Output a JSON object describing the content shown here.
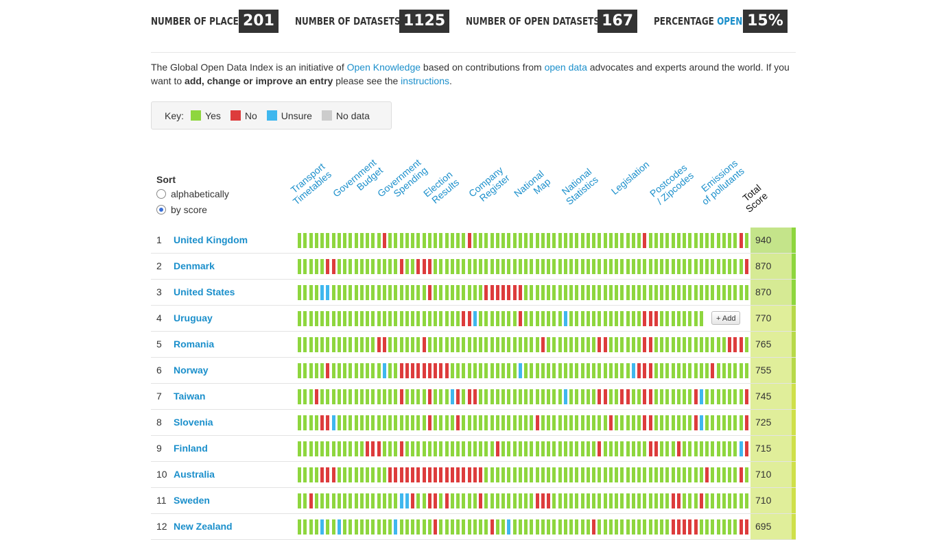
{
  "stats": [
    {
      "label": "NUMBER OF PLACES",
      "value": "201"
    },
    {
      "label": "NUMBER OF DATASETS",
      "value": "1125"
    },
    {
      "label": "NUMBER OF OPEN DATASETS",
      "value": "167"
    },
    {
      "label": "PERCENTAGE",
      "label_highlight": "OPEN",
      "value": "15%"
    }
  ],
  "intro": {
    "t1": "The Global Open Data Index is an initiative of ",
    "link1": "Open Knowledge",
    "t2": " based on contributions from ",
    "link2": "open data",
    "t3": " advocates and experts around the world. If you want to ",
    "bold": "add, change or improve an entry",
    "t4": " please see the ",
    "link3": "instructions",
    "t5": "."
  },
  "key": {
    "label": "Key:",
    "items": [
      {
        "label": "Yes",
        "color": "#8ed63e"
      },
      {
        "label": "No",
        "color": "#dd3c3c"
      },
      {
        "label": "Unsure",
        "color": "#3fb7ee"
      },
      {
        "label": "No data",
        "color": "#cccccc"
      }
    ]
  },
  "sort": {
    "title": "Sort",
    "options": [
      {
        "label": "alphabetically",
        "selected": false
      },
      {
        "label": "by score",
        "selected": true
      }
    ]
  },
  "columns": [
    {
      "line1": "Transport",
      "line2": "Timetables"
    },
    {
      "line1": "Government",
      "line2": "Budget"
    },
    {
      "line1": "Government",
      "line2": "Spending"
    },
    {
      "line1": "Election",
      "line2": "Results"
    },
    {
      "line1": "Company",
      "line2": "Register"
    },
    {
      "line1": "National",
      "line2": "Map"
    },
    {
      "line1": "National",
      "line2": "Statistics"
    },
    {
      "line1": "",
      "line2": "Legislation"
    },
    {
      "line1": "Postcodes",
      "line2": "/ Zipcodes"
    },
    {
      "line1": "Emissions",
      "line2": "of pollutants"
    },
    {
      "line1": "Total",
      "line2": "Score",
      "is_score": true
    }
  ],
  "colors": {
    "yes": "#8ed63e",
    "no": "#dd3c3c",
    "unsure": "#3fb7ee",
    "nodata": "#cccccc",
    "score_bg": "#e0ee9a",
    "score_bg_top": "#c4e48a"
  },
  "add_label": "+ Add",
  "rows": [
    {
      "rank": "1",
      "place": "United Kingdom",
      "score": "940",
      "no": [
        15,
        30,
        61,
        78
      ],
      "unsure": []
    },
    {
      "rank": "2",
      "place": "Denmark",
      "score": "870",
      "no": [
        5,
        6,
        18,
        21,
        22,
        23,
        79
      ],
      "unsure": []
    },
    {
      "rank": "3",
      "place": "United States",
      "score": "870",
      "no": [
        23,
        33,
        34,
        35,
        36,
        37,
        38,
        39
      ],
      "unsure": [
        4,
        5
      ]
    },
    {
      "rank": "4",
      "place": "Uruguay",
      "score": "770",
      "no": [
        29,
        30,
        39,
        61,
        62,
        63
      ],
      "unsure": [
        31,
        47
      ],
      "truncate": 72,
      "add": true
    },
    {
      "rank": "5",
      "place": "Romania",
      "score": "765",
      "no": [
        14,
        15,
        22,
        43,
        53,
        54,
        61,
        62,
        76,
        77,
        78
      ],
      "unsure": []
    },
    {
      "rank": "6",
      "place": "Norway",
      "score": "755",
      "no": [
        5,
        18,
        19,
        20,
        21,
        22,
        23,
        24,
        25,
        26,
        60,
        61,
        62,
        73
      ],
      "unsure": [
        15,
        39,
        59
      ]
    },
    {
      "rank": "7",
      "place": "Taiwan",
      "score": "745",
      "no": [
        3,
        18,
        23,
        28,
        30,
        31,
        53,
        54,
        57,
        58,
        61,
        62,
        70,
        79
      ],
      "unsure": [
        27,
        47,
        71
      ]
    },
    {
      "rank": "8",
      "place": "Slovenia",
      "score": "725",
      "no": [
        4,
        5,
        23,
        28,
        42,
        55,
        61,
        62,
        70,
        79
      ],
      "unsure": [
        6,
        71
      ]
    },
    {
      "rank": "9",
      "place": "Finland",
      "score": "715",
      "no": [
        12,
        13,
        14,
        18,
        35,
        53,
        62,
        63,
        67,
        79
      ],
      "unsure": [
        78
      ]
    },
    {
      "rank": "10",
      "place": "Australia",
      "score": "710",
      "no": [
        4,
        5,
        6,
        16,
        17,
        18,
        19,
        20,
        21,
        22,
        23,
        24,
        25,
        26,
        27,
        28,
        29,
        30,
        31,
        32,
        72,
        78
      ],
      "unsure": []
    },
    {
      "rank": "11",
      "place": "Sweden",
      "score": "710",
      "no": [
        2,
        20,
        23,
        24,
        26,
        32,
        42,
        43,
        44,
        66,
        67,
        71
      ],
      "unsure": [
        18,
        19
      ]
    },
    {
      "rank": "12",
      "place": "New Zealand",
      "score": "695",
      "no": [
        24,
        34,
        52,
        66,
        67,
        68,
        69,
        70,
        78,
        79
      ],
      "unsure": [
        4,
        7,
        17,
        37
      ]
    }
  ]
}
